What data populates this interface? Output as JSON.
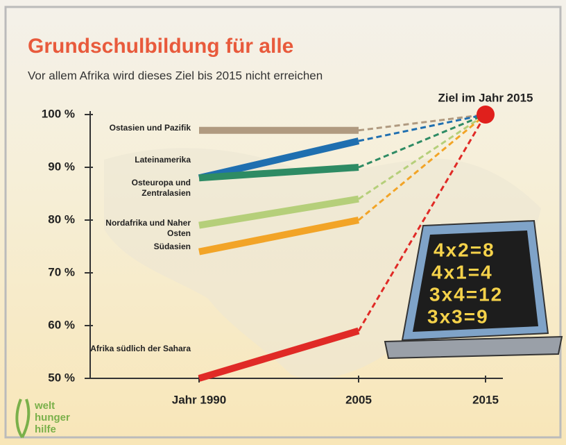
{
  "chart_data": {
    "type": "line",
    "title": "Grundschulbildung für alle",
    "subtitle": "Vor allem Afrika wird dieses Ziel bis 2015 nicht erreichen",
    "categories": [
      "Jahr 1990",
      "2005",
      "2015"
    ],
    "series": [
      {
        "name": "Ostasien und Pazifik",
        "color": "#b09a80",
        "values": [
          97,
          97,
          null
        ]
      },
      {
        "name": "Lateinamerika",
        "color": "#1f6fb0",
        "values": [
          88,
          95,
          null
        ]
      },
      {
        "name": "Osteuropa und Zentralasien",
        "color": "#2e8b64",
        "values": [
          88,
          90,
          null
        ]
      },
      {
        "name": "Nordafrika und Naher Osten",
        "color": "#b5cf7a",
        "values": [
          79,
          84,
          null
        ]
      },
      {
        "name": "Südasien",
        "color": "#f2a427",
        "values": [
          74,
          80,
          null
        ]
      },
      {
        "name": "Afrika südlich der Sahara",
        "color": "#e02a26",
        "values": [
          50,
          59,
          null
        ]
      }
    ],
    "goal": {
      "label": "Ziel im Jahr 2015",
      "value": 100,
      "color": "#e0201c"
    },
    "ylim": [
      50,
      100
    ],
    "yticks": [
      {
        "value": 50,
        "label": "50 %"
      },
      {
        "value": 60,
        "label": "60 %"
      },
      {
        "value": 70,
        "label": "70 %"
      },
      {
        "value": 80,
        "label": "80 %"
      },
      {
        "value": 90,
        "label": "90 %"
      },
      {
        "value": 100,
        "label": "100 %"
      }
    ],
    "board": [
      "4x2=8",
      "4x1=4",
      "3x4=12",
      "3x3=9"
    ],
    "logo": [
      "welt",
      "hunger",
      "hilfe"
    ]
  }
}
